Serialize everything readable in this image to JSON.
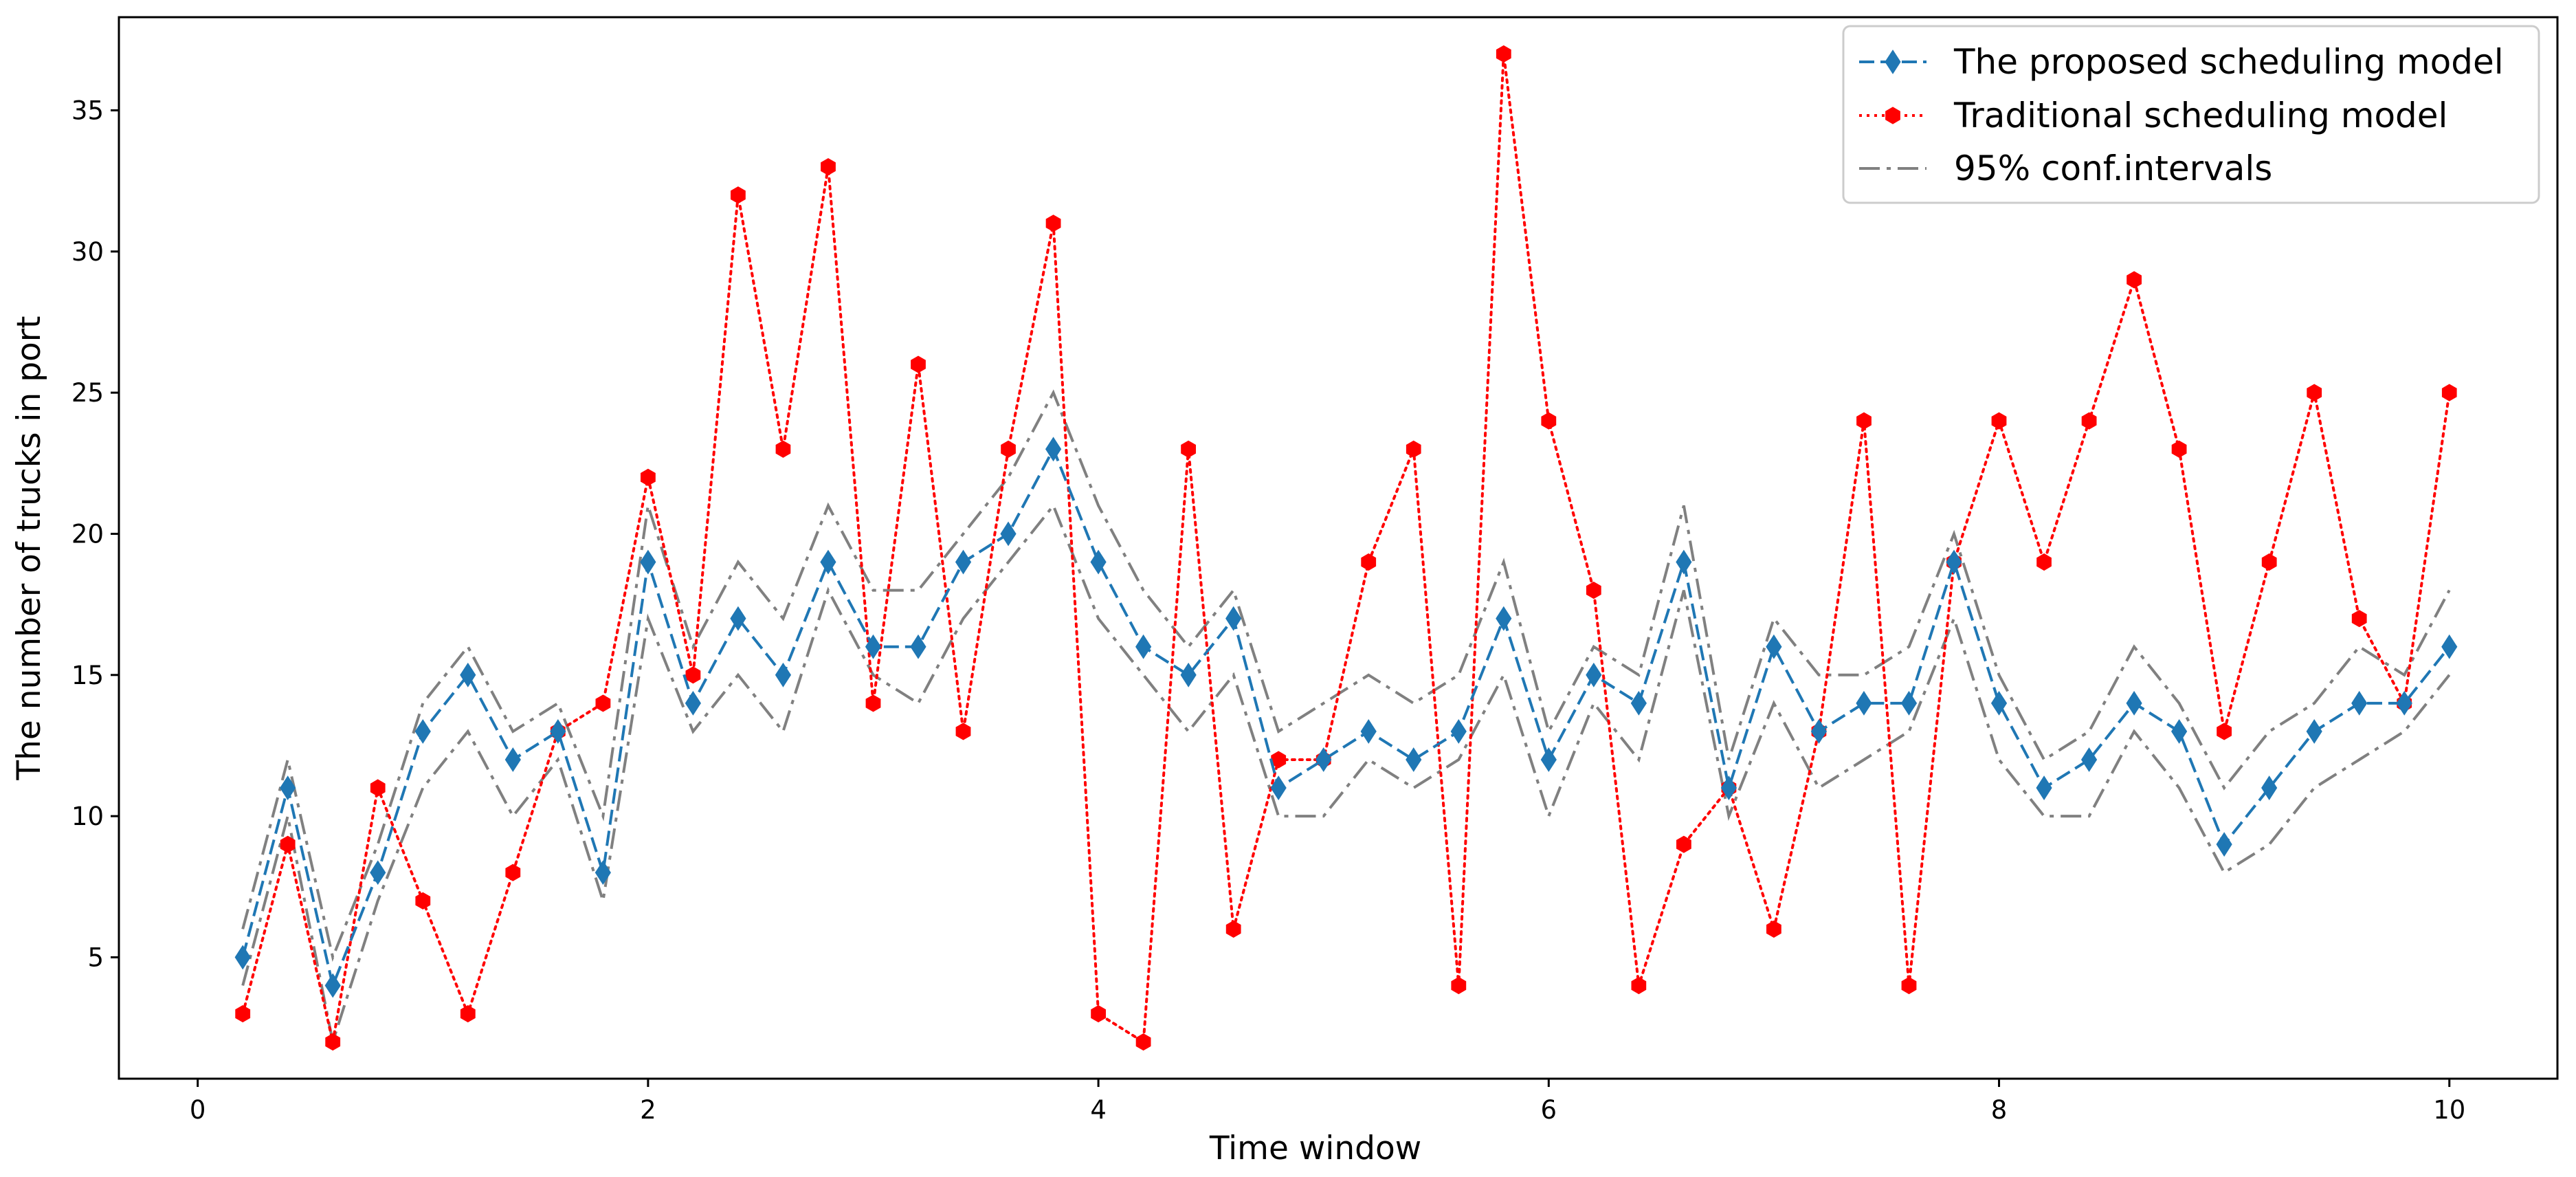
{
  "chart_data": {
    "type": "line",
    "title": "",
    "xlabel": "Time window",
    "ylabel": "The number of trucks in port",
    "xlim": [
      -0.35,
      10.48
    ],
    "ylim": [
      0.7,
      38.3
    ],
    "xticks": [
      0,
      2,
      4,
      6,
      8,
      10
    ],
    "xtick_labels": [
      "0",
      "2",
      "4",
      "6",
      "8",
      "10"
    ],
    "yticks": [
      5,
      10,
      15,
      20,
      25,
      30,
      35
    ],
    "ytick_labels": [
      "5",
      "10",
      "15",
      "20",
      "25",
      "30",
      "35"
    ],
    "grid": false,
    "legend_position": "top-right",
    "x": [
      0.2,
      0.4,
      0.6,
      0.8,
      1.0,
      1.2,
      1.4,
      1.6,
      1.8,
      2.0,
      2.2,
      2.4,
      2.6,
      2.8,
      3.0,
      3.2,
      3.4,
      3.6,
      3.8,
      4.0,
      4.2,
      4.4,
      4.6,
      4.8,
      5.0,
      5.2,
      5.4,
      5.6,
      5.8,
      6.0,
      6.2,
      6.4,
      6.6,
      6.8,
      7.0,
      7.2,
      7.4,
      7.6,
      7.8,
      8.0,
      8.2,
      8.4,
      8.6,
      8.8,
      9.0,
      9.2,
      9.4,
      9.6,
      9.8,
      10.0
    ],
    "series": [
      {
        "name": "The proposed scheduling model",
        "color": "#1f77b4",
        "style": "dashed",
        "marker": "diamond",
        "values": [
          5,
          11,
          4,
          8,
          13,
          15,
          12,
          13,
          8,
          19,
          14,
          17,
          15,
          19,
          16,
          16,
          19,
          20,
          23,
          19,
          16,
          15,
          17,
          11,
          12,
          13,
          12,
          13,
          17,
          12,
          15,
          14,
          19,
          11,
          16,
          13,
          14,
          14,
          19,
          14,
          11,
          12,
          14,
          13,
          9,
          11,
          13,
          14,
          14,
          16
        ]
      },
      {
        "name": "Traditional scheduling model",
        "color": "#ff0000",
        "style": "dotted",
        "marker": "hexagon",
        "values": [
          3,
          9,
          2,
          11,
          7,
          3,
          8,
          13,
          14,
          22,
          15,
          32,
          23,
          33,
          14,
          26,
          13,
          23,
          31,
          3,
          2,
          23,
          6,
          12,
          12,
          19,
          23,
          4,
          37,
          24,
          18,
          4,
          9,
          11,
          6,
          13,
          24,
          4,
          19,
          24,
          19,
          24,
          29,
          23,
          13,
          19,
          25,
          17,
          14,
          25
        ]
      },
      {
        "name": "95% conf.intervals",
        "color": "#808080",
        "style": "dashdot",
        "marker": "none",
        "upper": [
          6,
          12,
          5,
          9,
          14,
          16,
          13,
          14,
          10,
          21,
          16,
          19,
          17,
          21,
          18,
          18,
          20,
          22,
          25,
          21,
          18,
          16,
          18,
          13,
          14,
          15,
          14,
          15,
          19,
          13,
          16,
          15,
          21,
          12,
          17,
          15,
          15,
          16,
          20,
          15,
          12,
          13,
          16,
          14,
          11,
          13,
          14,
          16,
          15,
          18
        ],
        "lower": [
          4,
          10,
          2,
          7,
          11,
          13,
          10,
          12,
          7,
          17,
          13,
          15,
          13,
          18,
          15,
          14,
          17,
          19,
          21,
          17,
          15,
          13,
          15,
          10,
          10,
          12,
          11,
          12,
          15,
          10,
          14,
          12,
          18,
          10,
          14,
          11,
          12,
          13,
          17,
          12,
          10,
          10,
          13,
          11,
          8,
          9,
          11,
          12,
          13,
          15
        ]
      }
    ]
  }
}
